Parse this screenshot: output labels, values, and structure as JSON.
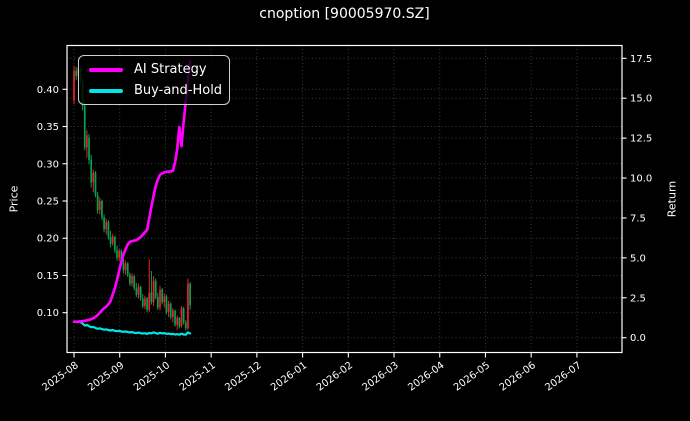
{
  "title": "cnoption [90005970.SZ]",
  "legend": {
    "items": [
      {
        "label": "AI Strategy",
        "color": "#ff00ff"
      },
      {
        "label": "Buy-and-Hold",
        "color": "#00e5e5"
      }
    ]
  },
  "colors": {
    "background": "#000000",
    "text": "#ffffff",
    "grid": "#3a3a3a",
    "spine": "#ffffff",
    "candle_up": "#e8242c",
    "candle_down": "#00a651",
    "ai_line": "#ff00ff",
    "buyhold_line": "#00e5e5"
  },
  "axes": {
    "left": {
      "label": "Price",
      "ticks": [
        "0.10",
        "0.15",
        "0.20",
        "0.25",
        "0.30",
        "0.35",
        "0.40"
      ]
    },
    "right": {
      "label": "Return",
      "ticks": [
        "0.0",
        "2.5",
        "5.0",
        "7.5",
        "10.0",
        "12.5",
        "15.0",
        "17.5"
      ]
    },
    "bottom": {
      "ticks": [
        "2025-08",
        "2025-09",
        "2025-10",
        "2025-11",
        "2025-12",
        "2026-01",
        "2026-02",
        "2026-03",
        "2026-04",
        "2026-05",
        "2026-06",
        "2026-07"
      ]
    }
  },
  "chart_data": {
    "type": "candlestick+line",
    "title": "cnoption [90005970.SZ]",
    "price_axis_range": [
      0.046,
      0.46
    ],
    "return_axis_range": [
      -0.9,
      18.3
    ],
    "grid": "dotted-both-axes",
    "legend_position": "upper-left",
    "candles_note": "date, open, high, low, close; red=up green=down (CN convention)",
    "candles": [
      [
        "2025-08-01",
        0.385,
        0.432,
        0.38,
        0.425
      ],
      [
        "2025-08-04",
        0.425,
        0.43,
        0.412,
        0.418
      ],
      [
        "2025-08-05",
        0.418,
        0.432,
        0.415,
        0.428
      ],
      [
        "2025-08-06",
        0.428,
        0.43,
        0.408,
        0.412
      ],
      [
        "2025-08-07",
        0.412,
        0.415,
        0.372,
        0.378
      ],
      [
        "2025-08-08",
        0.378,
        0.382,
        0.318,
        0.322
      ],
      [
        "2025-08-11",
        0.322,
        0.345,
        0.308,
        0.338
      ],
      [
        "2025-08-12",
        0.335,
        0.34,
        0.3,
        0.305
      ],
      [
        "2025-08-13",
        0.305,
        0.312,
        0.268,
        0.275
      ],
      [
        "2025-08-14",
        0.275,
        0.292,
        0.262,
        0.288
      ],
      [
        "2025-08-15",
        0.288,
        0.29,
        0.255,
        0.258
      ],
      [
        "2025-08-18",
        0.258,
        0.262,
        0.233,
        0.238
      ],
      [
        "2025-08-19",
        0.238,
        0.255,
        0.232,
        0.25
      ],
      [
        "2025-08-20",
        0.25,
        0.252,
        0.224,
        0.228
      ],
      [
        "2025-08-21",
        0.228,
        0.232,
        0.208,
        0.212
      ],
      [
        "2025-08-22",
        0.212,
        0.226,
        0.205,
        0.222
      ],
      [
        "2025-08-25",
        0.222,
        0.224,
        0.198,
        0.202
      ],
      [
        "2025-08-26",
        0.202,
        0.21,
        0.188,
        0.193
      ],
      [
        "2025-08-27",
        0.193,
        0.206,
        0.19,
        0.202
      ],
      [
        "2025-08-28",
        0.202,
        0.203,
        0.18,
        0.184
      ],
      [
        "2025-08-29",
        0.184,
        0.19,
        0.17,
        0.174
      ],
      [
        "2025-09-01",
        0.174,
        0.186,
        0.169,
        0.183
      ],
      [
        "2025-09-02",
        0.183,
        0.185,
        0.163,
        0.167
      ],
      [
        "2025-09-03",
        0.167,
        0.172,
        0.153,
        0.157
      ],
      [
        "2025-09-04",
        0.157,
        0.17,
        0.151,
        0.166
      ],
      [
        "2025-09-05",
        0.166,
        0.168,
        0.148,
        0.151
      ],
      [
        "2025-09-08",
        0.151,
        0.154,
        0.136,
        0.139
      ],
      [
        "2025-09-09",
        0.139,
        0.153,
        0.135,
        0.149
      ],
      [
        "2025-09-10",
        0.149,
        0.151,
        0.13,
        0.133
      ],
      [
        "2025-09-11",
        0.133,
        0.14,
        0.121,
        0.124
      ],
      [
        "2025-09-12",
        0.124,
        0.139,
        0.119,
        0.135
      ],
      [
        "2025-09-15",
        0.135,
        0.136,
        0.116,
        0.119
      ],
      [
        "2025-09-16",
        0.119,
        0.125,
        0.106,
        0.109
      ],
      [
        "2025-09-17",
        0.109,
        0.123,
        0.105,
        0.119
      ],
      [
        "2025-09-18",
        0.119,
        0.121,
        0.101,
        0.104
      ],
      [
        "2025-09-19",
        0.104,
        0.172,
        0.101,
        0.127
      ],
      [
        "2025-09-22",
        0.127,
        0.156,
        0.111,
        0.114
      ],
      [
        "2025-09-23",
        0.114,
        0.149,
        0.109,
        0.143
      ],
      [
        "2025-09-24",
        0.143,
        0.146,
        0.118,
        0.121
      ],
      [
        "2025-09-25",
        0.121,
        0.127,
        0.104,
        0.107
      ],
      [
        "2025-09-26",
        0.107,
        0.136,
        0.103,
        0.131
      ],
      [
        "2025-09-29",
        0.131,
        0.133,
        0.111,
        0.114
      ],
      [
        "2025-09-30",
        0.114,
        0.126,
        0.107,
        0.122
      ],
      [
        "2025-10-09",
        0.122,
        0.124,
        0.098,
        0.101
      ],
      [
        "2025-10-10",
        0.101,
        0.116,
        0.094,
        0.112
      ],
      [
        "2025-10-13",
        0.112,
        0.114,
        0.091,
        0.094
      ],
      [
        "2025-10-14",
        0.094,
        0.106,
        0.087,
        0.103
      ],
      [
        "2025-10-15",
        0.103,
        0.104,
        0.081,
        0.084
      ],
      [
        "2025-10-16",
        0.084,
        0.096,
        0.077,
        0.093
      ],
      [
        "2025-10-17",
        0.093,
        0.094,
        0.079,
        0.082
      ],
      [
        "2025-10-20",
        0.082,
        0.109,
        0.08,
        0.106
      ],
      [
        "2025-10-21",
        0.106,
        0.108,
        0.084,
        0.087
      ],
      [
        "2025-10-22",
        0.087,
        0.09,
        0.076,
        0.079
      ],
      [
        "2025-10-23",
        0.079,
        0.146,
        0.077,
        0.139
      ],
      [
        "2025-10-24",
        0.139,
        0.141,
        0.104,
        0.11
      ]
    ],
    "series": [
      {
        "name": "AI Strategy",
        "axis": "return",
        "color": "#ff00ff",
        "values": [
          1.0,
          1.0,
          1.01,
          1.02,
          1.04,
          1.06,
          1.09,
          1.12,
          1.16,
          1.22,
          1.3,
          1.42,
          1.56,
          1.72,
          1.85,
          1.95,
          2.1,
          2.3,
          2.7,
          3.1,
          3.6,
          4.2,
          4.75,
          5.2,
          5.55,
          5.85,
          6.0,
          6.05,
          6.08,
          6.1,
          6.2,
          6.3,
          6.45,
          6.6,
          6.75,
          7.5,
          8.2,
          8.9,
          9.5,
          9.9,
          10.2,
          10.3,
          10.35,
          10.4,
          10.4,
          10.42,
          10.45,
          11.0,
          11.8,
          13.2,
          12.0,
          13.5,
          14.8,
          16.2,
          17.3
        ]
      },
      {
        "name": "Buy-and-Hold",
        "axis": "return",
        "color": "#00e5e5",
        "values": [
          1.0,
          0.98,
          1.01,
          0.97,
          0.89,
          0.76,
          0.8,
          0.72,
          0.65,
          0.68,
          0.61,
          0.56,
          0.59,
          0.54,
          0.5,
          0.52,
          0.48,
          0.45,
          0.48,
          0.43,
          0.41,
          0.43,
          0.39,
          0.37,
          0.39,
          0.36,
          0.33,
          0.35,
          0.31,
          0.29,
          0.32,
          0.28,
          0.26,
          0.28,
          0.24,
          0.3,
          0.27,
          0.34,
          0.28,
          0.25,
          0.31,
          0.27,
          0.29,
          0.24,
          0.26,
          0.22,
          0.24,
          0.2,
          0.22,
          0.19,
          0.25,
          0.2,
          0.19,
          0.33,
          0.26
        ]
      }
    ]
  }
}
